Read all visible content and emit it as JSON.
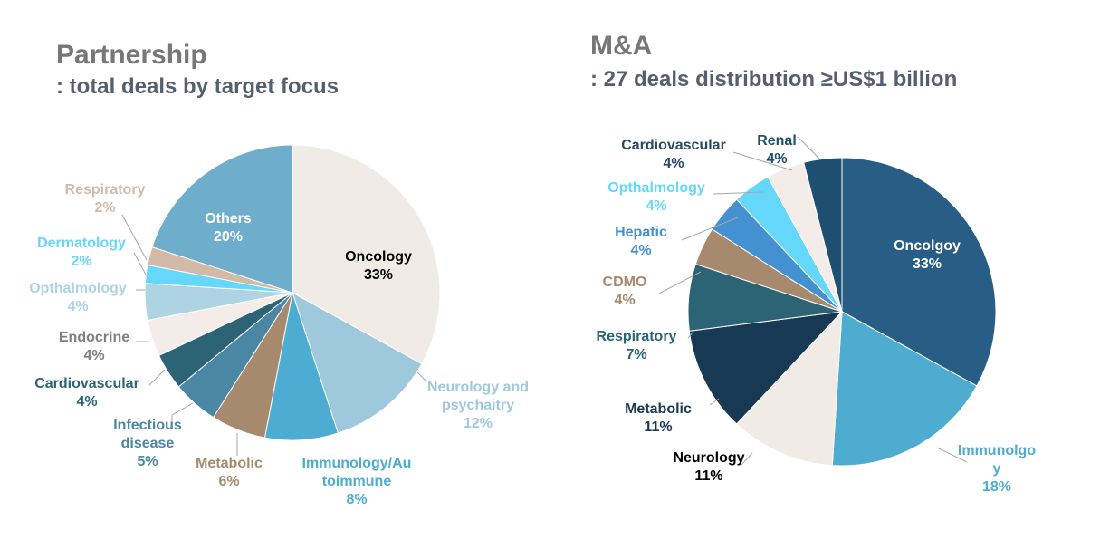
{
  "chart_data": [
    {
      "type": "pie",
      "title": "Partnership",
      "subtitle": ": total deals by target focus",
      "slices": [
        {
          "label": [
            "Oncology"
          ],
          "pct": "33%",
          "value": 33,
          "color": "#f0ebe5",
          "text_color": "#000000"
        },
        {
          "label": [
            "Neurology and",
            "psychaitry"
          ],
          "pct": "12%",
          "value": 12,
          "color": "#9ec9dc",
          "text_color": "#9ec9dc"
        },
        {
          "label": [
            "Immunology/Au",
            "toimmune"
          ],
          "pct": "8%",
          "value": 8,
          "color": "#4dacd1",
          "text_color": "#4dacd1"
        },
        {
          "label": [
            "Metabolic"
          ],
          "pct": "6%",
          "value": 6,
          "color": "#a78a6e",
          "text_color": "#a78a6e"
        },
        {
          "label": [
            "Infectious",
            "disease"
          ],
          "pct": "5%",
          "value": 5,
          "color": "#4a87a5",
          "text_color": "#4a87a5"
        },
        {
          "label": [
            "Cardiovascular"
          ],
          "pct": "4%",
          "value": 4,
          "color": "#2c6475",
          "text_color": "#2c6475"
        },
        {
          "label": [
            "Endocrine"
          ],
          "pct": "4%",
          "value": 4,
          "color": "#f3ece8",
          "text_color": "#7f7f7f"
        },
        {
          "label": [
            "Opthalmology"
          ],
          "pct": "4%",
          "value": 4,
          "color": "#aed3e3",
          "text_color": "#aed3e3"
        },
        {
          "label": [
            "Dermatology"
          ],
          "pct": "2%",
          "value": 2,
          "color": "#64d7fb",
          "text_color": "#64d7fb"
        },
        {
          "label": [
            "Respiratory"
          ],
          "pct": "2%",
          "value": 2,
          "color": "#d1bba7",
          "text_color": "#d1bba7"
        },
        {
          "label": [
            "Others"
          ],
          "pct": "20%",
          "value": 20,
          "color": "#6fadcc",
          "text_color": "#ffffff"
        }
      ]
    },
    {
      "type": "pie",
      "title": "M&A",
      "subtitle": ": 27 deals distribution ≥US$1 billion",
      "slices": [
        {
          "label": [
            "Oncolgoy"
          ],
          "pct": "33%",
          "value": 33,
          "color": "#285d86",
          "text_color": "#ffffff"
        },
        {
          "label": [
            "Immunolgo",
            "y"
          ],
          "pct": "18%",
          "value": 18,
          "color": "#4eacd1",
          "text_color": "#4eacd1"
        },
        {
          "label": [
            "Neurology"
          ],
          "pct": "11%",
          "value": 11,
          "color": "#f0ebe5",
          "text_color": "#000000"
        },
        {
          "label": [
            "Metabolic"
          ],
          "pct": "11%",
          "value": 11,
          "color": "#173953",
          "text_color": "#173953"
        },
        {
          "label": [
            "Respiratory"
          ],
          "pct": "7%",
          "value": 7,
          "color": "#2c6475",
          "text_color": "#2c6475"
        },
        {
          "label": [
            "CDMO"
          ],
          "pct": "4%",
          "value": 4,
          "color": "#a78a6e",
          "text_color": "#a78a6e"
        },
        {
          "label": [
            "Hepatic"
          ],
          "pct": "4%",
          "value": 4,
          "color": "#4391d0",
          "text_color": "#4391d0"
        },
        {
          "label": [
            "Opthalmology"
          ],
          "pct": "4%",
          "value": 4,
          "color": "#64d7fb",
          "text_color": "#64d7fb"
        },
        {
          "label": [
            "Cardiovascular"
          ],
          "pct": "4%",
          "value": 4,
          "color": "#f3ece8",
          "text_color": "#2a4a62"
        },
        {
          "label": [
            "Renal"
          ],
          "pct": "4%",
          "value": 4,
          "color": "#1f4f70",
          "text_color": "#1f4f70"
        }
      ]
    }
  ]
}
